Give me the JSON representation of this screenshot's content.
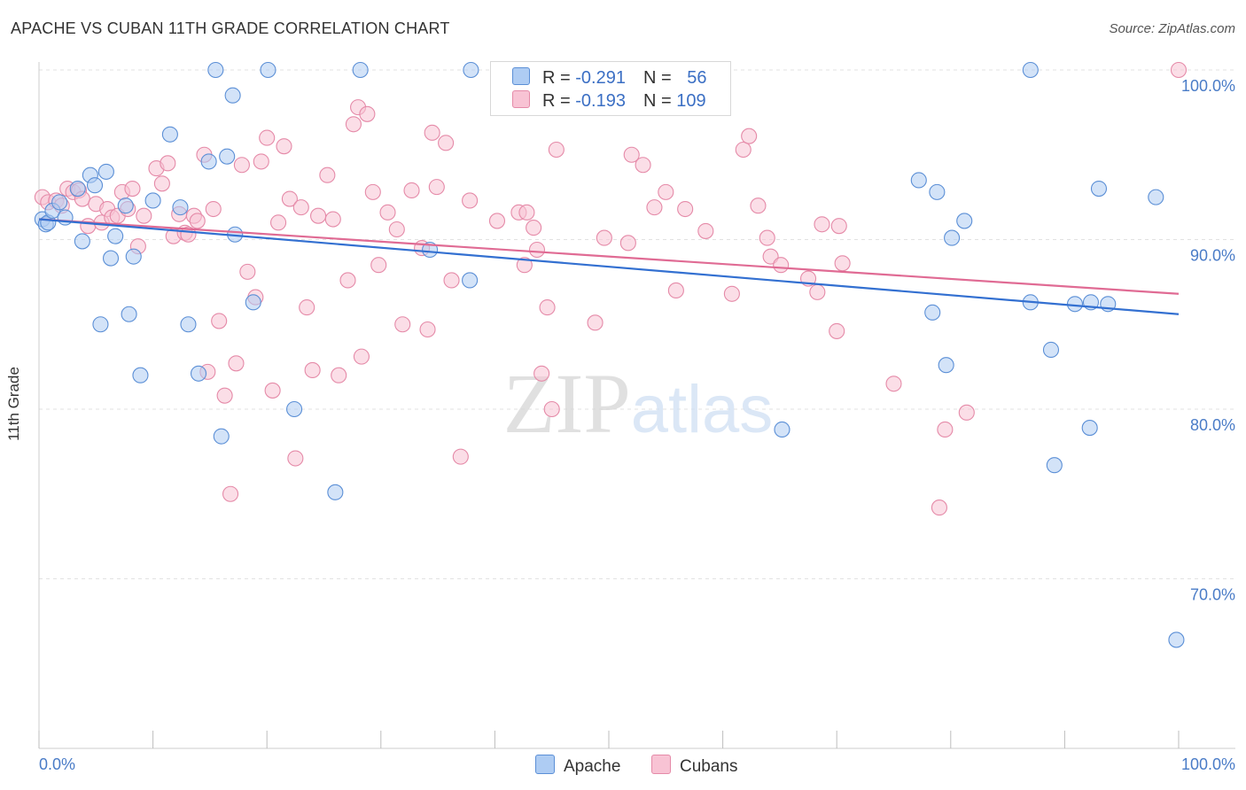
{
  "title": "APACHE VS CUBAN 11TH GRADE CORRELATION CHART",
  "source": "Source: ZipAtlas.com",
  "colors": {
    "apache_fill": "#aeccf3",
    "apache_stroke": "#5b8fd6",
    "apache_line": "#3370d1",
    "cubans_fill": "#f8c3d4",
    "cubans_stroke": "#e58aa8",
    "cubans_line": "#e06b94",
    "tick_text": "#4a7cc7",
    "grid": "#e2e2e2"
  },
  "legend": {
    "apache": {
      "r_label": "R = ",
      "r_value": "-0.291",
      "n_label": "N = ",
      "n_value": "56"
    },
    "cubans": {
      "r_label": "R = ",
      "r_value": "-0.193",
      "n_label": "N = ",
      "n_value": "109"
    }
  },
  "chart_data": {
    "type": "scatter",
    "title": "APACHE VS CUBAN 11TH GRADE CORRELATION CHART",
    "xlabel": "",
    "ylabel": "11th Grade",
    "xlim": [
      0,
      100
    ],
    "ylim": [
      60.5,
      101.5
    ],
    "x_ticks": [
      0,
      10,
      20,
      30,
      40,
      50,
      60,
      70,
      80,
      90,
      100
    ],
    "x_tick_labels": [
      {
        "value": 0,
        "label": "0.0%"
      },
      {
        "value": 100,
        "label": "100.0%"
      }
    ],
    "y_ticks": [
      {
        "value": 100,
        "label": "100.0%"
      },
      {
        "value": 90,
        "label": "90.0%"
      },
      {
        "value": 80,
        "label": "80.0%"
      },
      {
        "value": 70,
        "label": "70.0%"
      }
    ],
    "grid": true,
    "watermark": "ZIPatlas",
    "series": [
      {
        "name": "Apache",
        "r": -0.291,
        "n": 56,
        "trend": {
          "x": [
            0,
            100
          ],
          "y": [
            91.2,
            85.6
          ]
        },
        "points": [
          [
            0.3,
            91.2
          ],
          [
            0.6,
            90.9
          ],
          [
            0.8,
            91.0
          ],
          [
            1.2,
            91.7
          ],
          [
            1.8,
            92.2
          ],
          [
            2.3,
            91.3
          ],
          [
            3.4,
            93.0
          ],
          [
            3.8,
            89.9
          ],
          [
            4.5,
            93.8
          ],
          [
            4.9,
            93.2
          ],
          [
            5.4,
            85.0
          ],
          [
            5.9,
            94.0
          ],
          [
            6.3,
            88.9
          ],
          [
            6.7,
            90.2
          ],
          [
            7.6,
            92.0
          ],
          [
            7.9,
            85.6
          ],
          [
            8.3,
            89.0
          ],
          [
            8.9,
            82.0
          ],
          [
            10.0,
            92.3
          ],
          [
            11.5,
            96.2
          ],
          [
            12.4,
            91.9
          ],
          [
            13.1,
            85.0
          ],
          [
            14.0,
            82.1
          ],
          [
            14.9,
            94.6
          ],
          [
            15.5,
            100.0
          ],
          [
            16.0,
            78.4
          ],
          [
            16.5,
            94.9
          ],
          [
            17.0,
            98.5
          ],
          [
            17.2,
            90.3
          ],
          [
            18.8,
            86.3
          ],
          [
            20.1,
            100.0
          ],
          [
            22.4,
            80.0
          ],
          [
            26.0,
            75.1
          ],
          [
            28.2,
            100.0
          ],
          [
            34.3,
            89.4
          ],
          [
            37.8,
            87.6
          ],
          [
            37.9,
            100.0
          ],
          [
            42.0,
            100.0
          ],
          [
            65.2,
            78.8
          ],
          [
            77.2,
            93.5
          ],
          [
            78.4,
            85.7
          ],
          [
            78.8,
            92.8
          ],
          [
            79.6,
            82.6
          ],
          [
            80.1,
            90.1
          ],
          [
            81.2,
            91.1
          ],
          [
            87.0,
            100.0
          ],
          [
            87.0,
            86.3
          ],
          [
            88.8,
            83.5
          ],
          [
            89.1,
            76.7
          ],
          [
            90.9,
            86.2
          ],
          [
            92.2,
            78.9
          ],
          [
            92.3,
            86.3
          ],
          [
            93.0,
            93.0
          ],
          [
            93.8,
            86.2
          ],
          [
            98.0,
            92.5
          ],
          [
            99.8,
            66.4
          ]
        ]
      },
      {
        "name": "Cubans",
        "r": -0.193,
        "n": 109,
        "trend": {
          "x": [
            0,
            100
          ],
          "y": [
            91.2,
            86.8
          ]
        },
        "points": [
          [
            0.3,
            92.5
          ],
          [
            0.8,
            92.2
          ],
          [
            1.5,
            92.3
          ],
          [
            2.0,
            92.0
          ],
          [
            2.5,
            93.0
          ],
          [
            3.0,
            92.8
          ],
          [
            3.5,
            92.9
          ],
          [
            3.8,
            92.4
          ],
          [
            4.3,
            90.8
          ],
          [
            5.0,
            92.1
          ],
          [
            5.5,
            91.0
          ],
          [
            6.0,
            91.8
          ],
          [
            6.4,
            91.3
          ],
          [
            6.9,
            91.4
          ],
          [
            7.3,
            92.8
          ],
          [
            7.8,
            91.8
          ],
          [
            8.2,
            93.0
          ],
          [
            8.7,
            89.6
          ],
          [
            9.2,
            91.4
          ],
          [
            10.3,
            94.2
          ],
          [
            10.8,
            93.3
          ],
          [
            11.3,
            94.5
          ],
          [
            11.8,
            90.2
          ],
          [
            12.3,
            91.5
          ],
          [
            12.8,
            90.4
          ],
          [
            13.1,
            90.3
          ],
          [
            13.6,
            91.4
          ],
          [
            13.9,
            91.1
          ],
          [
            14.5,
            95.0
          ],
          [
            14.8,
            82.2
          ],
          [
            15.3,
            91.8
          ],
          [
            15.8,
            85.2
          ],
          [
            16.3,
            80.8
          ],
          [
            16.8,
            75.0
          ],
          [
            17.3,
            82.7
          ],
          [
            17.8,
            94.4
          ],
          [
            18.3,
            88.1
          ],
          [
            19.0,
            86.6
          ],
          [
            19.5,
            94.6
          ],
          [
            20.0,
            96.0
          ],
          [
            20.5,
            81.1
          ],
          [
            21.0,
            91.0
          ],
          [
            21.5,
            95.5
          ],
          [
            22.0,
            92.4
          ],
          [
            22.5,
            77.1
          ],
          [
            23.0,
            91.9
          ],
          [
            23.5,
            86.0
          ],
          [
            24.0,
            82.3
          ],
          [
            24.5,
            91.4
          ],
          [
            25.3,
            93.8
          ],
          [
            25.8,
            91.2
          ],
          [
            26.3,
            82.0
          ],
          [
            27.1,
            87.6
          ],
          [
            27.6,
            96.8
          ],
          [
            28.0,
            97.8
          ],
          [
            28.3,
            83.1
          ],
          [
            28.8,
            97.4
          ],
          [
            29.3,
            92.8
          ],
          [
            29.8,
            88.5
          ],
          [
            30.6,
            91.6
          ],
          [
            31.4,
            90.6
          ],
          [
            31.9,
            85.0
          ],
          [
            32.7,
            92.9
          ],
          [
            33.6,
            89.5
          ],
          [
            34.1,
            84.7
          ],
          [
            34.5,
            96.3
          ],
          [
            34.9,
            93.1
          ],
          [
            35.7,
            95.7
          ],
          [
            36.2,
            87.6
          ],
          [
            37.0,
            77.2
          ],
          [
            37.8,
            92.3
          ],
          [
            40.2,
            91.1
          ],
          [
            42.1,
            91.6
          ],
          [
            42.6,
            88.5
          ],
          [
            42.8,
            91.6
          ],
          [
            43.4,
            90.7
          ],
          [
            43.7,
            89.4
          ],
          [
            44.1,
            82.1
          ],
          [
            44.6,
            86.0
          ],
          [
            45.0,
            80.0
          ],
          [
            45.4,
            95.3
          ],
          [
            48.8,
            85.1
          ],
          [
            49.6,
            90.1
          ],
          [
            51.7,
            89.8
          ],
          [
            52.0,
            95.0
          ],
          [
            53.0,
            94.4
          ],
          [
            54.0,
            91.9
          ],
          [
            55.0,
            92.8
          ],
          [
            55.9,
            87.0
          ],
          [
            56.7,
            91.8
          ],
          [
            58.5,
            90.5
          ],
          [
            60.8,
            86.8
          ],
          [
            61.8,
            95.3
          ],
          [
            62.3,
            96.1
          ],
          [
            63.1,
            92.0
          ],
          [
            63.9,
            90.1
          ],
          [
            64.2,
            89.0
          ],
          [
            65.1,
            88.5
          ],
          [
            67.5,
            87.7
          ],
          [
            68.3,
            86.9
          ],
          [
            68.7,
            90.9
          ],
          [
            70.0,
            84.6
          ],
          [
            70.2,
            90.8
          ],
          [
            70.5,
            88.6
          ],
          [
            75.0,
            81.5
          ],
          [
            79.0,
            74.2
          ],
          [
            79.5,
            78.8
          ],
          [
            81.4,
            79.8
          ],
          [
            100.0,
            100.0
          ]
        ]
      }
    ]
  }
}
